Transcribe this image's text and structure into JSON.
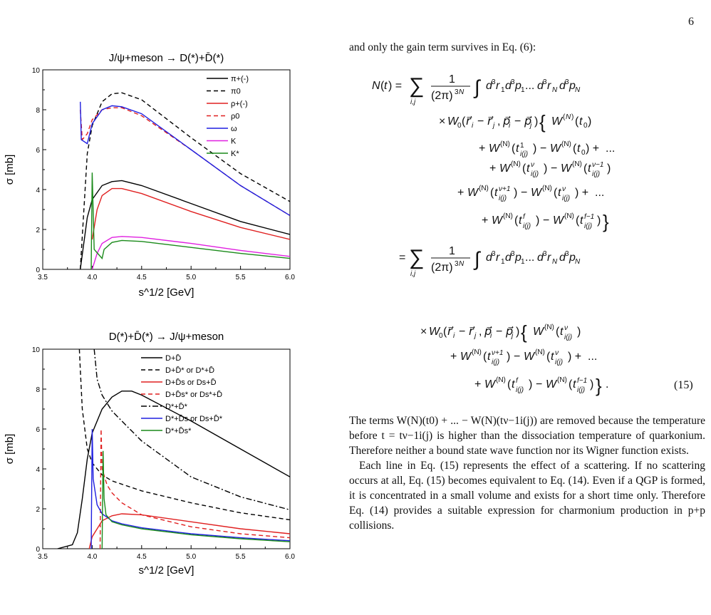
{
  "page_number": "6",
  "chart_data": [
    {
      "type": "line",
      "title": "J/ψ+meson → D(*)+D̄(*)",
      "xlabel": "s^1/2 [GeV]",
      "ylabel": "σ [mb]",
      "xlim": [
        3.5,
        6.0
      ],
      "ylim": [
        0,
        10
      ],
      "xticks": [
        "3.5",
        "4.0",
        "4.5",
        "5.0",
        "5.5",
        "6.0"
      ],
      "yticks": [
        "0",
        "2",
        "4",
        "6",
        "8",
        "10"
      ],
      "legend_position": "top-right",
      "series": [
        {
          "name": "π+(-)",
          "color": "#000000",
          "dash": "solid",
          "x": [
            3.88,
            3.95,
            4.0,
            4.1,
            4.2,
            4.3,
            4.5,
            5.0,
            5.5,
            6.0
          ],
          "y": [
            0,
            2.6,
            3.5,
            4.2,
            4.4,
            4.45,
            4.2,
            3.3,
            2.4,
            1.75
          ]
        },
        {
          "name": "π0",
          "color": "#000000",
          "dash": "dashed",
          "x": [
            3.88,
            3.95,
            4.0,
            4.1,
            4.2,
            4.3,
            4.5,
            5.0,
            5.5,
            6.0
          ],
          "y": [
            0,
            5.8,
            7.2,
            8.4,
            8.8,
            8.85,
            8.5,
            6.6,
            4.8,
            3.4
          ]
        },
        {
          "name": "ρ+(-)",
          "color": "#e02020",
          "dash": "solid",
          "x": [
            4.0,
            4.05,
            4.1,
            4.2,
            4.3,
            4.5,
            5.0,
            5.5,
            6.0
          ],
          "y": [
            1.5,
            3.0,
            3.7,
            4.05,
            4.05,
            3.8,
            2.9,
            2.1,
            1.5
          ]
        },
        {
          "name": "ρ0",
          "color": "#e02020",
          "dash": "dashed",
          "x": [
            3.88,
            3.9,
            3.95,
            4.0,
            4.1,
            4.2,
            4.3,
            4.5,
            5.0,
            5.5,
            6.0
          ],
          "y": [
            8.0,
            6.5,
            6.8,
            7.5,
            8.0,
            8.1,
            8.1,
            7.7,
            6.0,
            4.2,
            2.7
          ]
        },
        {
          "name": "ω",
          "color": "#1f1fe0",
          "dash": "solid",
          "x": [
            3.88,
            3.89,
            3.95,
            4.0,
            4.1,
            4.2,
            4.3,
            4.5,
            5.0,
            5.5,
            6.0
          ],
          "y": [
            8.4,
            6.5,
            6.3,
            7.3,
            8.0,
            8.2,
            8.15,
            7.8,
            6.0,
            4.2,
            2.7
          ]
        },
        {
          "name": "K",
          "color": "#e020e0",
          "dash": "solid",
          "x": [
            4.0,
            4.05,
            4.1,
            4.2,
            4.3,
            4.5,
            5.0,
            5.5,
            6.0
          ],
          "y": [
            0,
            0.8,
            1.3,
            1.6,
            1.65,
            1.6,
            1.3,
            0.95,
            0.65
          ]
        },
        {
          "name": "K*",
          "color": "#1a8a1a",
          "dash": "solid",
          "x": [
            3.99,
            4.0,
            4.02,
            4.1,
            4.12,
            4.2,
            4.3,
            4.5,
            5.0,
            5.5,
            6.0
          ],
          "y": [
            0,
            4.85,
            1.0,
            0.55,
            1.0,
            1.35,
            1.45,
            1.4,
            1.1,
            0.8,
            0.55
          ]
        }
      ]
    },
    {
      "type": "line",
      "title": "D(*)+D̄(*) → J/ψ+meson",
      "xlabel": "s^1/2 [GeV]",
      "ylabel": "σ [mb]",
      "xlim": [
        3.5,
        6.0
      ],
      "ylim": [
        0,
        10
      ],
      "xticks": [
        "3.5",
        "4.0",
        "4.5",
        "5.0",
        "5.5",
        "6.0"
      ],
      "yticks": [
        "0",
        "2",
        "4",
        "6",
        "8",
        "10"
      ],
      "legend_position": "top-right",
      "series": [
        {
          "name": "D+D̄",
          "color": "#000000",
          "dash": "solid",
          "x": [
            3.65,
            3.8,
            3.85,
            3.9,
            3.95,
            4.0,
            4.1,
            4.2,
            4.3,
            4.4,
            4.5,
            5.0,
            5.5,
            6.0
          ],
          "y": [
            0,
            0.2,
            0.8,
            2.5,
            4.5,
            5.8,
            7.0,
            7.6,
            7.9,
            7.9,
            7.7,
            6.4,
            5.0,
            3.6
          ]
        },
        {
          "name": "D+D̄* or D*+D̄",
          "color": "#000000",
          "dash": "dashed",
          "x": [
            3.87,
            3.88,
            3.9,
            3.95,
            4.0,
            4.1,
            4.2,
            4.5,
            5.0,
            5.5,
            6.0
          ],
          "y": [
            10,
            9.0,
            7.0,
            5.0,
            4.3,
            3.7,
            3.4,
            2.9,
            2.3,
            1.8,
            1.45
          ]
        },
        {
          "name": "D+D̄s or Ds+D̄",
          "color": "#e02020",
          "dash": "solid",
          "x": [
            3.97,
            4.0,
            4.1,
            4.2,
            4.3,
            4.5,
            5.0,
            5.5,
            6.0
          ],
          "y": [
            0,
            0.6,
            1.4,
            1.65,
            1.75,
            1.7,
            1.35,
            1.0,
            0.75
          ]
        },
        {
          "name": "D+D̄s* or Ds*+D̄",
          "color": "#e02020",
          "dash": "dashed",
          "x": [
            4.08,
            4.09,
            4.1,
            4.15,
            4.2,
            4.3,
            4.5,
            5.0,
            5.5,
            6.0
          ],
          "y": [
            0,
            6.0,
            4.0,
            3.2,
            2.8,
            2.3,
            1.7,
            1.1,
            0.75,
            0.55
          ]
        },
        {
          "name": "D*+D̄*",
          "color": "#000000",
          "dash": "dashdot",
          "x": [
            4.02,
            4.03,
            4.05,
            4.1,
            4.2,
            4.3,
            4.5,
            5.0,
            5.5,
            6.0
          ],
          "y": [
            10,
            9.5,
            8.5,
            7.7,
            6.9,
            6.4,
            5.4,
            3.6,
            2.6,
            1.95
          ]
        },
        {
          "name": "D*+D̄s or Ds+D̄*",
          "color": "#1f1fe0",
          "dash": "solid",
          "x": [
            3.99,
            4.0,
            4.01,
            4.05,
            4.1,
            4.2,
            4.3,
            4.5,
            5.0,
            5.5,
            6.0
          ],
          "y": [
            0,
            6.0,
            3.5,
            2.2,
            1.75,
            1.4,
            1.25,
            1.05,
            0.75,
            0.55,
            0.4
          ]
        },
        {
          "name": "D*+D̄s*",
          "color": "#1a8a1a",
          "dash": "solid",
          "x": [
            4.1,
            4.11,
            4.12,
            4.14,
            4.2,
            4.3,
            4.5,
            5.0,
            5.5,
            6.0
          ],
          "y": [
            0,
            4.9,
            2.5,
            1.7,
            1.35,
            1.2,
            1.0,
            0.7,
            0.5,
            0.35
          ]
        }
      ]
    }
  ],
  "text": {
    "intro": "and only the gain term survives in Eq. (6):",
    "eq_number": "(15)",
    "para1": "The terms W(N)(t0) + ... − W(N)(tν−1i(j)) are removed because the temperature before t = tν−1i(j) is higher than the dissociation temperature of quarkonium. Therefore neither a bound state wave function nor its Wigner function exists.",
    "para2": "Each line in Eq. (15) represents the effect of a scattering. If no scattering occurs at all, Eq. (15) becomes equivalent to Eq. (14). Even if a QGP is formed, it is concentrated in a small volume and exists for a short time only. Therefore Eq. (14) provides a suitable expression for charmonium production in p+p collisions."
  }
}
